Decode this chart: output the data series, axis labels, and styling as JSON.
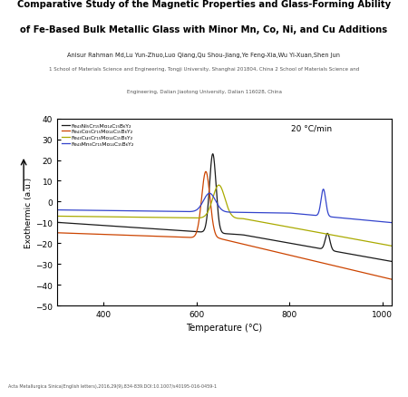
{
  "title_line1": "Comparative Study of the Magnetic Properties and Glass-Forming Ability",
  "title_line2": "of Fe-Based Bulk Metallic Glass with Minor Mn, Co, Ni, and Cu Additions",
  "authors": "Anisur Rahman Md,Lu Yun-Zhuo,Luo Qiang,Qu Shou-Jiang,Ye Feng-Xia,Wu Yi-Xuan,Shen Jun",
  "affiliation1": "1 School of Materials Science and Engineering, Tongji University, Shanghai 201804, China 2 School of Materials Science and",
  "affiliation2": "Engineering, Dalian Jiaotong University, Dalian 116028, China",
  "journal": "Acta Metallurgica Sinica(English letters),2016,29(9),834-839.DOI:10.1007/s40195-016-0459-1",
  "xlabel": "Temperature (°C)",
  "ylabel": "Exothermic (a.u.)",
  "annotation": "20 °C/min",
  "xlim": [
    300,
    1020
  ],
  "ylim": [
    -50,
    40
  ],
  "yticks": [
    -50,
    -40,
    -30,
    -20,
    -10,
    0,
    10,
    20,
    30,
    40
  ],
  "xticks": [
    400,
    600,
    800,
    1000
  ],
  "legend_labels": [
    "Fe₄₃Ni₅Cr₁₅Mo₁₄C₁₅B₆Y₂",
    "Fe₄₃Co₅Cr₁₅Mo₁₄C₁₅B₆Y₂",
    "Fe₄₃Cu₅Cr₁₅Mo₁₄C₁₅B₆Y₂",
    "Fe₄₃Mn₅Cr₁₅Mo₁₄C₁₅B₆Y₂"
  ],
  "colors": [
    "#1a1a1a",
    "#cc4400",
    "#aaaa00",
    "#3344cc"
  ],
  "bg_color": "#ffffff"
}
